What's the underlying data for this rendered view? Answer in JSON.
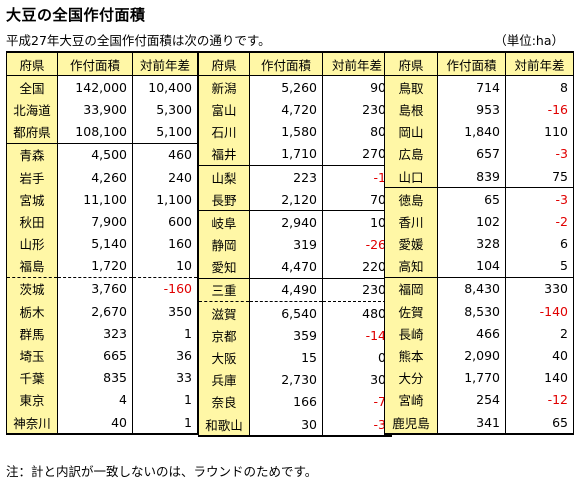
{
  "title": "大豆の全国作付面積",
  "subtitle": "平成27年大豆の全国作付面積は次の通りです。",
  "unit": "（単位:ha）",
  "note": "注：計と内訳が一致しないのは、ラウンドのためです。",
  "headers": [
    "府県",
    "作付面積",
    "対前年差"
  ],
  "columns": [
    {
      "rows": [
        {
          "pref": "全国",
          "area": "142,000",
          "diff": "10,400",
          "neg": false
        },
        {
          "pref": "北海道",
          "area": "33,900",
          "diff": "5,300",
          "neg": false
        },
        {
          "pref": "都府県",
          "area": "108,100",
          "diff": "5,100",
          "neg": false
        },
        {
          "pref": "青森",
          "area": "4,500",
          "diff": "460",
          "neg": false
        },
        {
          "pref": "岩手",
          "area": "4,260",
          "diff": "240",
          "neg": false
        },
        {
          "pref": "宮城",
          "area": "11,100",
          "diff": "1,100",
          "neg": false
        },
        {
          "pref": "秋田",
          "area": "7,900",
          "diff": "600",
          "neg": false
        },
        {
          "pref": "山形",
          "area": "5,140",
          "diff": "160",
          "neg": false
        },
        {
          "pref": "福島",
          "area": "1,720",
          "diff": "10",
          "neg": false
        },
        {
          "pref": "茨城",
          "area": "3,760",
          "diff": "-160",
          "neg": true
        },
        {
          "pref": "栃木",
          "area": "2,670",
          "diff": "350",
          "neg": false
        },
        {
          "pref": "群馬",
          "area": "323",
          "diff": "1",
          "neg": false
        },
        {
          "pref": "埼玉",
          "area": "665",
          "diff": "36",
          "neg": false
        },
        {
          "pref": "千葉",
          "area": "835",
          "diff": "33",
          "neg": false
        },
        {
          "pref": "東京",
          "area": "4",
          "diff": "1",
          "neg": false
        },
        {
          "pref": "神奈川",
          "area": "40",
          "diff": "1",
          "neg": false
        }
      ]
    },
    {
      "rows": [
        {
          "pref": "新潟",
          "area": "5,260",
          "diff": "90",
          "neg": false
        },
        {
          "pref": "富山",
          "area": "4,720",
          "diff": "230",
          "neg": false
        },
        {
          "pref": "石川",
          "area": "1,580",
          "diff": "80",
          "neg": false
        },
        {
          "pref": "福井",
          "area": "1,710",
          "diff": "270",
          "neg": false
        },
        {
          "pref": "山梨",
          "area": "223",
          "diff": "-1",
          "neg": true
        },
        {
          "pref": "長野",
          "area": "2,120",
          "diff": "70",
          "neg": false
        },
        {
          "pref": "岐阜",
          "area": "2,940",
          "diff": "10",
          "neg": false
        },
        {
          "pref": "静岡",
          "area": "319",
          "diff": "-26",
          "neg": true
        },
        {
          "pref": "愛知",
          "area": "4,470",
          "diff": "220",
          "neg": false
        },
        {
          "pref": "三重",
          "area": "4,490",
          "diff": "230",
          "neg": false
        },
        {
          "pref": "滋賀",
          "area": "6,540",
          "diff": "480",
          "neg": false
        },
        {
          "pref": "京都",
          "area": "359",
          "diff": "-14",
          "neg": true
        },
        {
          "pref": "大阪",
          "area": "15",
          "diff": "0",
          "neg": false
        },
        {
          "pref": "兵庫",
          "area": "2,730",
          "diff": "30",
          "neg": false
        },
        {
          "pref": "奈良",
          "area": "166",
          "diff": "-7",
          "neg": true
        },
        {
          "pref": "和歌山",
          "area": "30",
          "diff": "-3",
          "neg": true
        }
      ]
    },
    {
      "rows": [
        {
          "pref": "鳥取",
          "area": "714",
          "diff": "8",
          "neg": false
        },
        {
          "pref": "島根",
          "area": "953",
          "diff": "-16",
          "neg": true
        },
        {
          "pref": "岡山",
          "area": "1,840",
          "diff": "110",
          "neg": false
        },
        {
          "pref": "広島",
          "area": "657",
          "diff": "-3",
          "neg": true
        },
        {
          "pref": "山口",
          "area": "839",
          "diff": "75",
          "neg": false
        },
        {
          "pref": "徳島",
          "area": "65",
          "diff": "-3",
          "neg": true
        },
        {
          "pref": "香川",
          "area": "102",
          "diff": "-2",
          "neg": true
        },
        {
          "pref": "愛媛",
          "area": "328",
          "diff": "6",
          "neg": false
        },
        {
          "pref": "高知",
          "area": "104",
          "diff": "5",
          "neg": false
        },
        {
          "pref": "福岡",
          "area": "8,430",
          "diff": "330",
          "neg": false
        },
        {
          "pref": "佐賀",
          "area": "8,530",
          "diff": "-140",
          "neg": true
        },
        {
          "pref": "長崎",
          "area": "466",
          "diff": "2",
          "neg": false
        },
        {
          "pref": "熊本",
          "area": "2,090",
          "diff": "40",
          "neg": false
        },
        {
          "pref": "大分",
          "area": "1,770",
          "diff": "140",
          "neg": false
        },
        {
          "pref": "宮崎",
          "area": "254",
          "diff": "-12",
          "neg": true
        },
        {
          "pref": "鹿児島",
          "area": "341",
          "diff": "65",
          "neg": false
        }
      ]
    }
  ],
  "colors": {
    "header_bg": "#fff7a6",
    "negative": "#e00000"
  }
}
